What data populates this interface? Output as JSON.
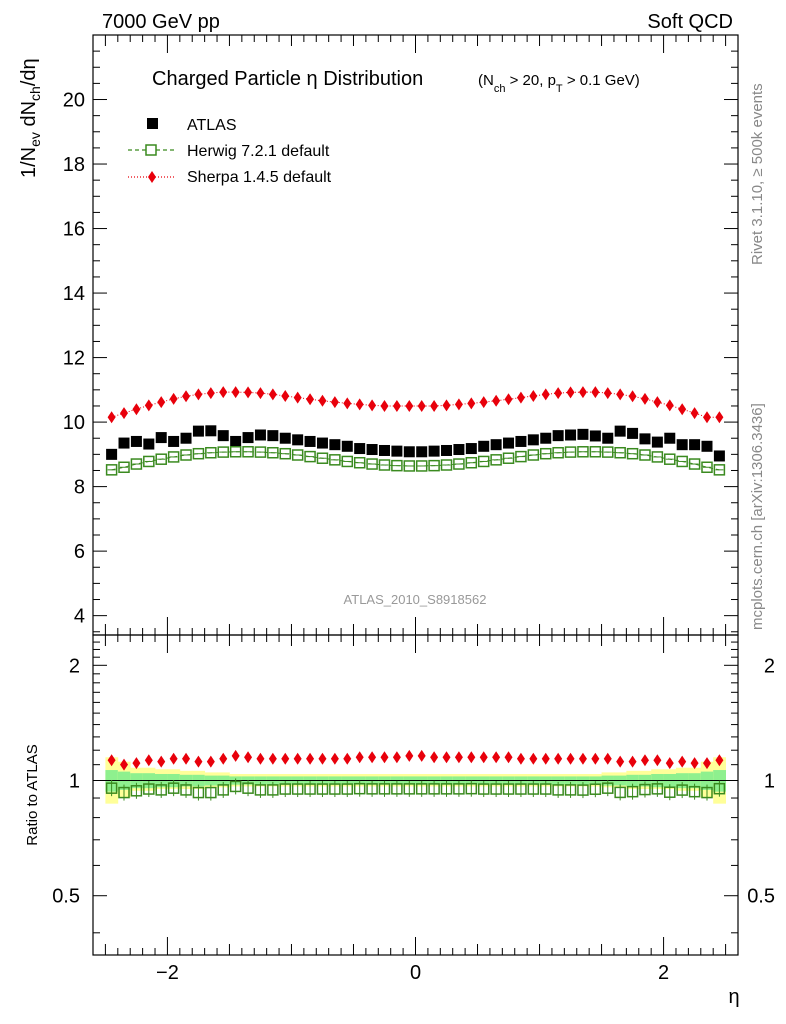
{
  "header": {
    "left": "7000 GeV pp",
    "right": "Soft QCD"
  },
  "side_labels": {
    "rivet": "Rivet 3.1.10, ≥ 500k events",
    "mcplots": "mcplots.cern.ch [arXiv:1306.3436]"
  },
  "watermark": "ATLAS_2010_S8918562",
  "colors": {
    "atlas": "#000000",
    "herwig": "#3a8a1f",
    "sherpa": "#e8000b",
    "band_inner": "#8ef08e",
    "band_outer": "#ffff99"
  },
  "chart_data": [
    {
      "type": "scatter",
      "title": "Charged Particle η Distribution",
      "title_cut": "(N_ch > 20, p_T > 0.1 GeV)",
      "xlabel": "η",
      "ylabel": "1/N_ev dN_ch/dη",
      "xlim": [
        -2.6,
        2.6
      ],
      "ylim": [
        3.4,
        22.0
      ],
      "yticks": [
        4,
        6,
        8,
        10,
        12,
        14,
        16,
        18,
        20
      ],
      "ytick_labels": [
        "4",
        "6",
        "8",
        "10",
        "12",
        "14",
        "16",
        "18",
        "20"
      ],
      "x": [
        -2.45,
        -2.35,
        -2.25,
        -2.15,
        -2.05,
        -1.95,
        -1.85,
        -1.75,
        -1.65,
        -1.55,
        -1.45,
        -1.35,
        -1.25,
        -1.15,
        -1.05,
        -0.95,
        -0.85,
        -0.75,
        -0.65,
        -0.55,
        -0.45,
        -0.35,
        -0.25,
        -0.15,
        -0.05,
        0.05,
        0.15,
        0.25,
        0.35,
        0.45,
        0.55,
        0.65,
        0.75,
        0.85,
        0.95,
        1.05,
        1.15,
        1.25,
        1.35,
        1.45,
        1.55,
        1.65,
        1.75,
        1.85,
        1.95,
        2.05,
        2.15,
        2.25,
        2.35,
        2.45
      ],
      "series": [
        {
          "name": "ATLAS",
          "marker": "filled-square",
          "values": [
            9.0,
            9.35,
            9.4,
            9.32,
            9.52,
            9.4,
            9.5,
            9.72,
            9.73,
            9.58,
            9.4,
            9.52,
            9.6,
            9.58,
            9.5,
            9.45,
            9.4,
            9.35,
            9.3,
            9.25,
            9.18,
            9.15,
            9.12,
            9.1,
            9.08,
            9.08,
            9.1,
            9.12,
            9.15,
            9.18,
            9.25,
            9.3,
            9.35,
            9.4,
            9.45,
            9.5,
            9.58,
            9.6,
            9.62,
            9.57,
            9.5,
            9.72,
            9.65,
            9.48,
            9.38,
            9.5,
            9.3,
            9.3,
            9.25,
            8.95
          ]
        },
        {
          "name": "Herwig 7.2.1 default",
          "marker": "open-square",
          "line": "dashed",
          "values": [
            8.52,
            8.6,
            8.7,
            8.78,
            8.85,
            8.92,
            8.98,
            9.02,
            9.05,
            9.07,
            9.08,
            9.08,
            9.07,
            9.05,
            9.02,
            8.98,
            8.93,
            8.88,
            8.83,
            8.78,
            8.74,
            8.7,
            8.67,
            8.65,
            8.64,
            8.64,
            8.65,
            8.67,
            8.7,
            8.74,
            8.78,
            8.83,
            8.88,
            8.93,
            8.98,
            9.02,
            9.05,
            9.07,
            9.08,
            9.08,
            9.07,
            9.05,
            9.02,
            8.98,
            8.92,
            8.85,
            8.78,
            8.7,
            8.6,
            8.52
          ]
        },
        {
          "name": "Sherpa 1.4.5 default",
          "marker": "filled-diamond",
          "line": "dotted",
          "values": [
            10.15,
            10.28,
            10.4,
            10.52,
            10.62,
            10.72,
            10.8,
            10.86,
            10.9,
            10.93,
            10.93,
            10.92,
            10.9,
            10.86,
            10.81,
            10.76,
            10.71,
            10.66,
            10.62,
            10.58,
            10.55,
            10.52,
            10.5,
            10.5,
            10.5,
            10.5,
            10.5,
            10.52,
            10.55,
            10.58,
            10.62,
            10.66,
            10.71,
            10.76,
            10.81,
            10.86,
            10.9,
            10.92,
            10.93,
            10.93,
            10.9,
            10.86,
            10.8,
            10.72,
            10.62,
            10.52,
            10.4,
            10.28,
            10.15,
            10.15
          ]
        }
      ]
    },
    {
      "type": "scatter",
      "title": "",
      "xlabel": "η",
      "ylabel": "Ratio to ATLAS",
      "xlim": [
        -2.6,
        2.6
      ],
      "ylim": [
        0.35,
        2.4
      ],
      "yscale": "log",
      "yticks": [
        0.5,
        1,
        2
      ],
      "ytick_labels": [
        "0.5",
        "1",
        "2"
      ],
      "xticks": [
        -2,
        0,
        2
      ],
      "xtick_labels": [
        "−2",
        "0",
        "2"
      ],
      "x": [
        -2.45,
        -2.35,
        -2.25,
        -2.15,
        -2.05,
        -1.95,
        -1.85,
        -1.75,
        -1.65,
        -1.55,
        -1.45,
        -1.35,
        -1.25,
        -1.15,
        -1.05,
        -0.95,
        -0.85,
        -0.75,
        -0.65,
        -0.55,
        -0.45,
        -0.35,
        -0.25,
        -0.15,
        -0.05,
        0.05,
        0.15,
        0.25,
        0.35,
        0.45,
        0.55,
        0.65,
        0.75,
        0.85,
        0.95,
        1.05,
        1.15,
        1.25,
        1.35,
        1.45,
        1.55,
        1.65,
        1.75,
        1.85,
        1.95,
        2.05,
        2.15,
        2.25,
        2.35,
        2.45
      ],
      "band_inner": [
        0.065,
        0.055,
        0.045,
        0.045,
        0.04,
        0.04,
        0.035,
        0.035,
        0.03,
        0.03,
        0.025,
        0.025,
        0.025,
        0.025,
        0.025,
        0.025,
        0.025,
        0.025,
        0.025,
        0.025,
        0.025,
        0.025,
        0.025,
        0.025,
        0.025,
        0.025,
        0.025,
        0.025,
        0.025,
        0.025,
        0.025,
        0.025,
        0.025,
        0.025,
        0.025,
        0.025,
        0.025,
        0.025,
        0.025,
        0.025,
        0.03,
        0.03,
        0.035,
        0.035,
        0.04,
        0.04,
        0.045,
        0.045,
        0.055,
        0.065
      ],
      "band_outer_hi": [
        0.15,
        0.12,
        0.08,
        0.08,
        0.07,
        0.07,
        0.06,
        0.06,
        0.05,
        0.05,
        0.04,
        0.04,
        0.04,
        0.04,
        0.04,
        0.04,
        0.04,
        0.04,
        0.04,
        0.04,
        0.04,
        0.04,
        0.04,
        0.04,
        0.04,
        0.04,
        0.04,
        0.04,
        0.04,
        0.04,
        0.04,
        0.04,
        0.04,
        0.04,
        0.04,
        0.04,
        0.04,
        0.04,
        0.04,
        0.04,
        0.05,
        0.05,
        0.06,
        0.06,
        0.07,
        0.07,
        0.08,
        0.08,
        0.12,
        0.15
      ],
      "band_outer_lo": [
        0.13,
        0.1,
        0.06,
        0.06,
        0.05,
        0.05,
        0.05,
        0.05,
        0.04,
        0.04,
        0.035,
        0.035,
        0.035,
        0.035,
        0.035,
        0.035,
        0.035,
        0.035,
        0.035,
        0.035,
        0.035,
        0.035,
        0.035,
        0.035,
        0.035,
        0.035,
        0.035,
        0.035,
        0.035,
        0.035,
        0.035,
        0.035,
        0.035,
        0.035,
        0.035,
        0.035,
        0.035,
        0.035,
        0.035,
        0.035,
        0.04,
        0.04,
        0.05,
        0.05,
        0.05,
        0.05,
        0.06,
        0.06,
        0.1,
        0.13
      ],
      "series": [
        {
          "name": "Herwig 7.2.1 default",
          "marker": "open-square",
          "values": [
            0.955,
            0.93,
            0.94,
            0.95,
            0.945,
            0.955,
            0.945,
            0.93,
            0.93,
            0.945,
            0.965,
            0.955,
            0.945,
            0.945,
            0.95,
            0.95,
            0.95,
            0.95,
            0.95,
            0.95,
            0.952,
            0.951,
            0.951,
            0.951,
            0.951,
            0.951,
            0.951,
            0.951,
            0.951,
            0.952,
            0.95,
            0.95,
            0.95,
            0.95,
            0.95,
            0.95,
            0.945,
            0.945,
            0.944,
            0.949,
            0.955,
            0.931,
            0.935,
            0.947,
            0.951,
            0.932,
            0.944,
            0.935,
            0.93,
            0.952
          ]
        },
        {
          "name": "Sherpa 1.4.5 default",
          "marker": "filled-diamond",
          "values": [
            1.13,
            1.1,
            1.11,
            1.13,
            1.12,
            1.14,
            1.14,
            1.12,
            1.12,
            1.14,
            1.16,
            1.15,
            1.14,
            1.14,
            1.14,
            1.14,
            1.14,
            1.14,
            1.14,
            1.14,
            1.15,
            1.15,
            1.15,
            1.15,
            1.16,
            1.16,
            1.15,
            1.15,
            1.15,
            1.15,
            1.15,
            1.15,
            1.15,
            1.14,
            1.14,
            1.14,
            1.14,
            1.14,
            1.14,
            1.14,
            1.14,
            1.12,
            1.12,
            1.13,
            1.13,
            1.11,
            1.12,
            1.11,
            1.11,
            1.13
          ]
        }
      ]
    }
  ]
}
